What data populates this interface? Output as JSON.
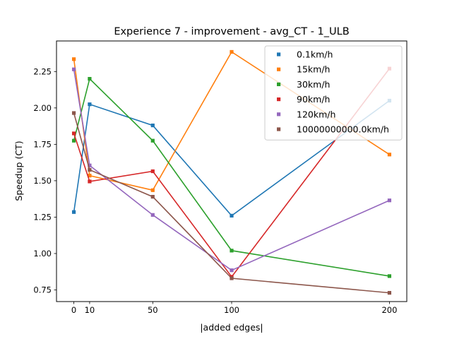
{
  "chart_data": {
    "type": "line",
    "title": "Experience 7 - improvement - avg_CT - 1_ULB",
    "xlabel": "|added edges|",
    "ylabel": "Speedup (CT)",
    "x": [
      0,
      10,
      50,
      100,
      200
    ],
    "xticks": [
      0,
      10,
      50,
      100,
      200
    ],
    "yticks": [
      "0.75",
      "1.00",
      "1.25",
      "1.50",
      "1.75",
      "2.00",
      "2.25"
    ],
    "xlim": [
      -11,
      211
    ],
    "ylim": [
      0.67,
      2.46
    ],
    "grid": false,
    "legend_position": "top-right",
    "series": [
      {
        "name": "0.1km/h",
        "color": "#1f77b4",
        "values": [
          1.285,
          2.025,
          1.88,
          1.26,
          2.05
        ]
      },
      {
        "name": "15km/h",
        "color": "#ff7f0e",
        "values": [
          2.335,
          1.535,
          1.435,
          2.385,
          1.68
        ]
      },
      {
        "name": "30km/h",
        "color": "#2ca02c",
        "values": [
          1.775,
          2.2,
          1.775,
          1.02,
          0.845
        ]
      },
      {
        "name": "90km/h",
        "color": "#d62728",
        "values": [
          1.825,
          1.495,
          1.565,
          0.84,
          2.27
        ]
      },
      {
        "name": "120km/h",
        "color": "#9467bd",
        "values": [
          2.265,
          1.605,
          1.265,
          0.885,
          1.365
        ]
      },
      {
        "name": "10000000000.0km/h",
        "color": "#8c564b",
        "values": [
          1.965,
          1.575,
          1.39,
          0.83,
          0.73
        ]
      }
    ]
  }
}
